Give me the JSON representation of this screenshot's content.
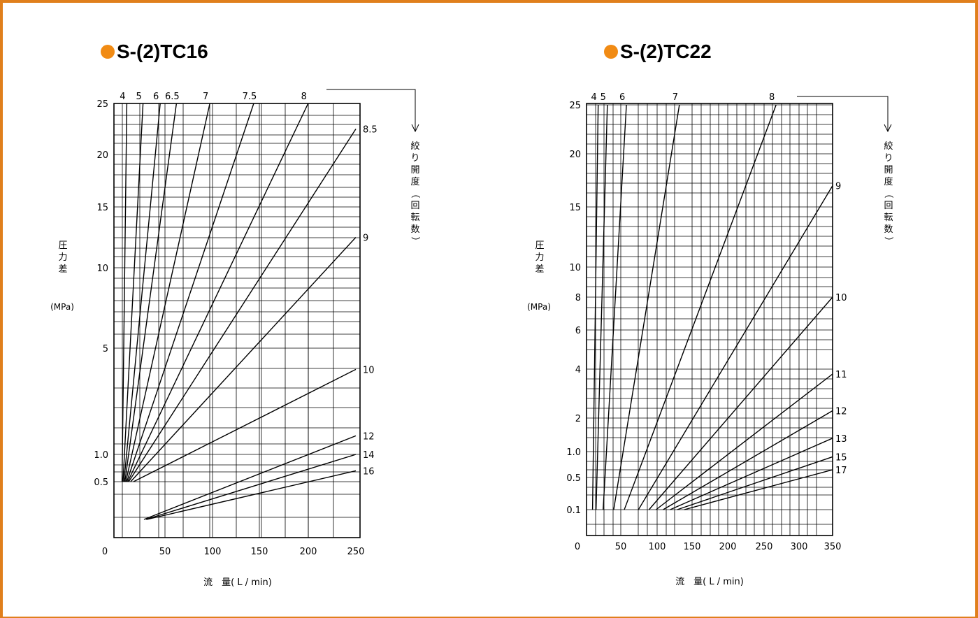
{
  "colors": {
    "frame": "#e07f1c",
    "title_dot": "#f18b14",
    "ink": "#000000"
  },
  "chart_data": [
    {
      "type": "line",
      "title": "S-(2)TC16",
      "xlabel": "流　量( L / min)",
      "ylabel": "圧力差",
      "yunit": "(MPa)",
      "legend_label": "絞り開度（回転数）",
      "xlim": [
        0,
        250
      ],
      "xticks": [
        "0",
        "50",
        "100",
        "150",
        "200",
        "250"
      ],
      "yticks": [
        "25",
        "20",
        "15",
        "10",
        "5",
        "1.0",
        "0.5"
      ],
      "grid": true,
      "series": [
        {
          "name": "4",
          "points": [
            [
              5,
              0.5
            ],
            [
              10,
              25
            ]
          ]
        },
        {
          "name": "5",
          "points": [
            [
              6,
              0.5
            ],
            [
              27,
              25
            ]
          ]
        },
        {
          "name": "6",
          "points": [
            [
              7,
              0.5
            ],
            [
              45,
              25
            ]
          ]
        },
        {
          "name": "6.5",
          "points": [
            [
              8,
              0.5
            ],
            [
              62,
              25
            ]
          ]
        },
        {
          "name": "7",
          "points": [
            [
              9,
              0.5
            ],
            [
              97,
              25
            ]
          ]
        },
        {
          "name": "7.5",
          "points": [
            [
              10,
              0.5
            ],
            [
              143,
              25
            ]
          ]
        },
        {
          "name": "8",
          "points": [
            [
              11,
              0.5
            ],
            [
              200,
              25
            ]
          ]
        },
        {
          "name": "8.5",
          "points": [
            [
              12,
              0.5
            ],
            [
              250,
              22.5
            ]
          ]
        },
        {
          "name": "9",
          "points": [
            [
              14,
              0.5
            ],
            [
              250,
              12.5
            ]
          ]
        },
        {
          "name": "10",
          "points": [
            [
              17,
              0.5
            ],
            [
              250,
              4.2
            ]
          ]
        },
        {
          "name": "12",
          "points": [
            [
              28,
              0.3
            ],
            [
              250,
              1.7
            ]
          ]
        },
        {
          "name": "14",
          "points": [
            [
              30,
              0.3
            ],
            [
              250,
              1.0
            ]
          ]
        },
        {
          "name": "16",
          "points": [
            [
              31,
              0.3
            ],
            [
              250,
              0.7
            ]
          ]
        }
      ]
    },
    {
      "type": "line",
      "title": "S-(2)TC22",
      "xlabel": "流　量( L / min)",
      "ylabel": "圧力差",
      "yunit": "(MPa)",
      "legend_label": "絞り開度（回転数）",
      "xlim": [
        0,
        350
      ],
      "xticks": [
        "0",
        "50",
        "100",
        "150",
        "200",
        "250",
        "300",
        "350"
      ],
      "yticks": [
        "25",
        "20",
        "15",
        "10",
        "8",
        "6",
        "4",
        "2",
        "1.0",
        "0.5",
        "0.1"
      ],
      "grid": true,
      "series": [
        {
          "name": "4",
          "points": [
            [
              10,
              0.1
            ],
            [
              18,
              25
            ]
          ]
        },
        {
          "name": "5",
          "points": [
            [
              15,
              0.1
            ],
            [
              31,
              25
            ]
          ]
        },
        {
          "name": "6",
          "points": [
            [
              25,
              0.1
            ],
            [
              58,
              25
            ]
          ]
        },
        {
          "name": "7",
          "points": [
            [
              40,
              0.1
            ],
            [
              133,
              25
            ]
          ]
        },
        {
          "name": "8",
          "points": [
            [
              55,
              0.1
            ],
            [
              270,
              25
            ]
          ]
        },
        {
          "name": "9",
          "points": [
            [
              75,
              0.1
            ],
            [
              350,
              17
            ]
          ]
        },
        {
          "name": "10",
          "points": [
            [
              90,
              0.1
            ],
            [
              350,
              8
            ]
          ]
        },
        {
          "name": "11",
          "points": [
            [
              100,
              0.1
            ],
            [
              350,
              3.8
            ]
          ]
        },
        {
          "name": "12",
          "points": [
            [
              110,
              0.1
            ],
            [
              350,
              2.3
            ]
          ]
        },
        {
          "name": "13",
          "points": [
            [
              120,
              0.1
            ],
            [
              350,
              1.4
            ]
          ]
        },
        {
          "name": "15",
          "points": [
            [
              130,
              0.1
            ],
            [
              350,
              0.9
            ]
          ]
        },
        {
          "name": "17",
          "points": [
            [
              140,
              0.1
            ],
            [
              350,
              0.65
            ]
          ]
        }
      ]
    }
  ]
}
